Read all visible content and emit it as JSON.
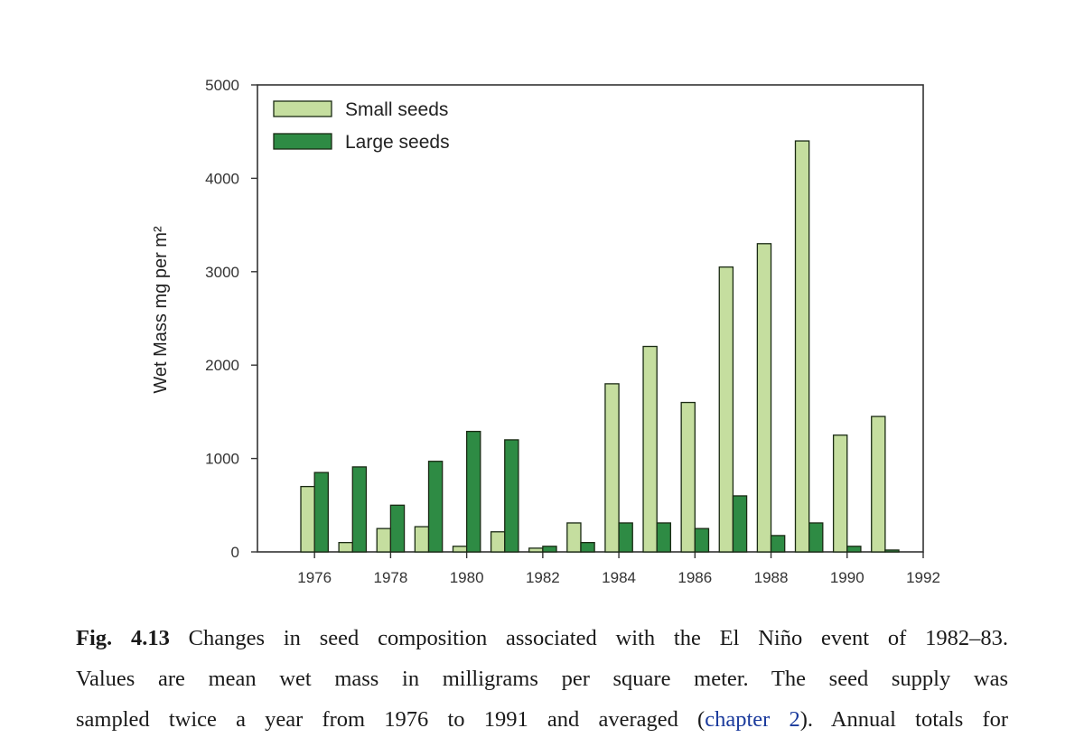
{
  "chart_data": {
    "type": "bar",
    "ylabel": "Wet Mass mg per m²",
    "xlabel": "",
    "ylim": [
      0,
      5000
    ],
    "yticks": [
      0,
      1000,
      2000,
      3000,
      4000,
      5000
    ],
    "xlim": [
      1974.5,
      1992
    ],
    "xticks": [
      1976,
      1978,
      1980,
      1982,
      1984,
      1986,
      1988,
      1990,
      1992
    ],
    "categories": [
      1976,
      1977,
      1978,
      1979,
      1980,
      1981,
      1982,
      1983,
      1984,
      1985,
      1986,
      1987,
      1988,
      1989,
      1990,
      1991
    ],
    "series": [
      {
        "name": "Small seeds",
        "color": "#c5de9f",
        "values": [
          700,
          100,
          250,
          270,
          60,
          215,
          40,
          310,
          1800,
          2200,
          1600,
          3050,
          3300,
          4400,
          1250,
          1450
        ]
      },
      {
        "name": "Large seeds",
        "color": "#2e8b44",
        "values": [
          850,
          910,
          500,
          970,
          1290,
          1200,
          60,
          100,
          310,
          310,
          250,
          600,
          175,
          310,
          60,
          20
        ]
      }
    ],
    "legend": "top-left",
    "grid": false
  },
  "caption": {
    "fig_label": "Fig. 4.13",
    "line1": "Changes in seed composition associated with the El Niño event of 1982–83.",
    "line2": "Values are mean wet mass in milligrams per square meter. The seed supply was",
    "line3_before": "sampled twice a year from 1976 to 1991 and averaged (",
    "link_text": "chapter 2",
    "line3_after": "). Annual totals for"
  }
}
